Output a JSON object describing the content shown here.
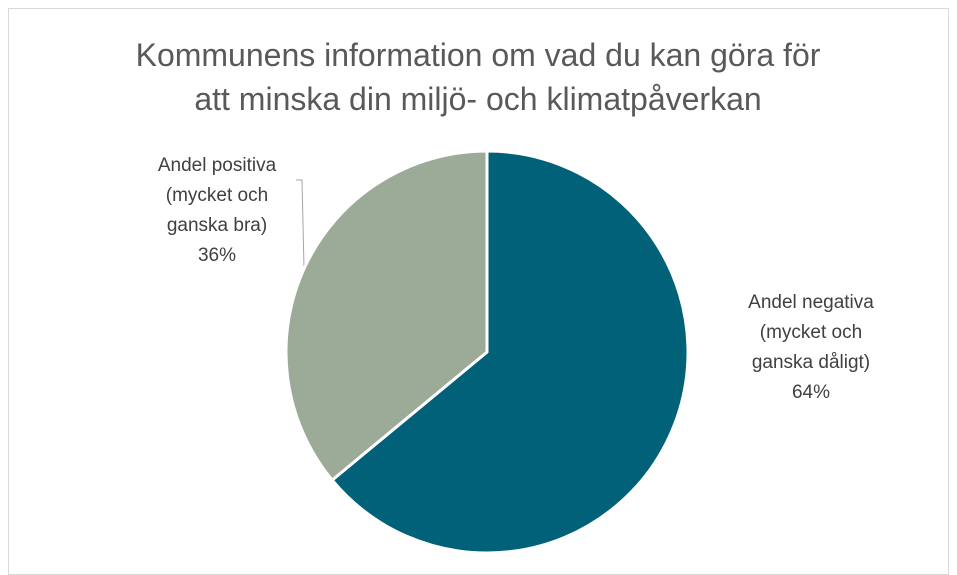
{
  "chart_data": {
    "type": "pie",
    "title": "Kommunens information om vad du kan göra för att minska din miljö- och klimatpåverkan",
    "categories": [
      "Andel negativa (mycket och ganska dåligt)",
      "Andel positiva (mycket och ganska bra)"
    ],
    "values": [
      64,
      36
    ],
    "value_labels": [
      "64%",
      "36%"
    ],
    "colors": [
      "#006179",
      "#9caa98"
    ]
  }
}
